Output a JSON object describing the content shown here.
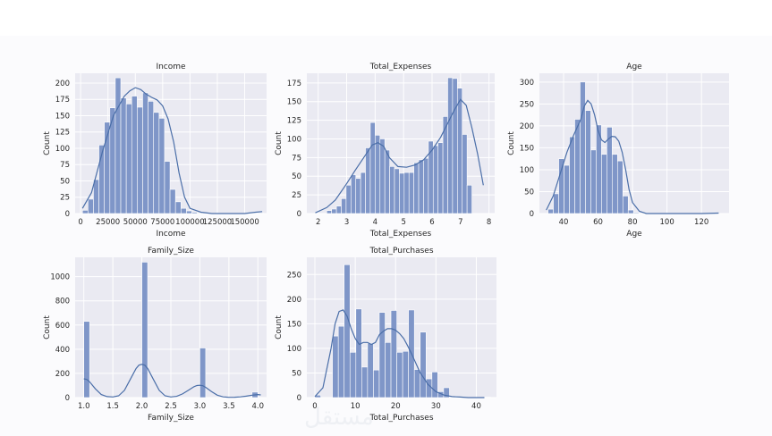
{
  "watermark": "مستقل",
  "colors": {
    "bar_fill": "#7f96c8",
    "bar_stroke": "#ffffff",
    "kde": "#4a6ea8",
    "panel_bg": "#eaeaf2",
    "grid": "#ffffff",
    "text": "#262626"
  },
  "chart_data": [
    {
      "type": "histogram",
      "title": "Income",
      "xlabel": "Income",
      "ylabel": "Count",
      "xlim": [
        -5000,
        170000
      ],
      "ylim": [
        0,
        215
      ],
      "xticks": [
        0,
        25000,
        50000,
        75000,
        100000,
        125000,
        150000
      ],
      "xticklabels": [
        "0",
        "25000",
        "50000",
        "75000",
        "100000",
        "125000",
        "150000"
      ],
      "yticks": [
        0,
        25,
        50,
        75,
        100,
        125,
        150,
        175,
        200
      ],
      "bin_start": 1730,
      "bin_width": 5000,
      "counts": [
        5,
        22,
        52,
        105,
        140,
        162,
        208,
        177,
        168,
        180,
        163,
        185,
        172,
        155,
        146,
        80,
        37,
        18,
        8,
        4,
        2,
        1,
        1,
        0,
        0,
        0,
        0,
        0,
        0,
        0,
        0,
        0,
        1
      ],
      "kde_x": [
        1730,
        10000,
        20000,
        30000,
        40000,
        45000,
        50000,
        55000,
        60000,
        65000,
        70000,
        75000,
        80000,
        85000,
        90000,
        95000,
        100000,
        110000,
        120000,
        130000,
        140000,
        150000,
        160000,
        166000
      ],
      "kde_y": [
        8,
        32,
        95,
        150,
        180,
        188,
        193,
        190,
        183,
        178,
        174,
        165,
        145,
        110,
        62,
        25,
        8,
        2,
        0,
        0,
        0,
        0,
        2,
        3
      ]
    },
    {
      "type": "histogram",
      "title": "Total_Expenses",
      "xlabel": "Total_Expenses",
      "ylabel": "Count",
      "xlim": [
        1.6,
        8.2
      ],
      "ylim": [
        0,
        188
      ],
      "xticks": [
        2,
        3,
        4,
        5,
        6,
        7,
        8
      ],
      "xticklabels": [
        "2",
        "3",
        "4",
        "5",
        "6",
        "7",
        "8"
      ],
      "yticks": [
        0,
        25,
        50,
        75,
        100,
        125,
        150,
        175
      ],
      "bin_start": 2.3,
      "bin_width": 0.17,
      "counts": [
        4,
        6,
        10,
        20,
        38,
        52,
        47,
        55,
        88,
        122,
        105,
        100,
        85,
        63,
        60,
        54,
        55,
        55,
        68,
        72,
        74,
        97,
        91,
        95,
        130,
        182,
        181,
        168,
        106,
        38
      ],
      "kde_x": [
        1.9,
        2.3,
        2.6,
        3.0,
        3.3,
        3.6,
        3.9,
        4.1,
        4.3,
        4.5,
        4.8,
        5.1,
        5.4,
        5.7,
        6.0,
        6.3,
        6.6,
        6.8,
        7.0,
        7.2,
        7.4,
        7.6,
        7.8
      ],
      "kde_y": [
        1,
        8,
        18,
        40,
        58,
        75,
        92,
        95,
        90,
        75,
        63,
        62,
        65,
        72,
        85,
        102,
        125,
        140,
        153,
        145,
        115,
        80,
        38
      ]
    },
    {
      "type": "histogram",
      "title": "Age",
      "xlabel": "Age",
      "ylabel": "Count",
      "xlim": [
        26,
        136
      ],
      "ylim": [
        0,
        320
      ],
      "xticks": [
        40,
        60,
        80,
        100,
        120
      ],
      "xticklabels": [
        "40",
        "60",
        "80",
        "100",
        "120"
      ],
      "yticks": [
        0,
        50,
        100,
        150,
        200,
        250,
        300
      ],
      "bin_start": 31,
      "bin_width": 3.1,
      "counts": [
        10,
        45,
        125,
        110,
        175,
        215,
        300,
        235,
        145,
        202,
        135,
        197,
        135,
        120,
        40,
        8,
        2,
        0,
        0,
        0,
        0,
        0,
        0,
        0,
        0,
        0,
        0,
        0,
        0,
        0,
        1,
        1
      ],
      "kde_x": [
        30,
        34,
        38,
        42,
        46,
        50,
        52,
        54,
        56,
        58,
        60,
        62,
        64,
        66,
        68,
        70,
        72,
        74,
        76,
        78,
        80,
        84,
        88,
        100,
        120,
        130
      ],
      "kde_y": [
        8,
        40,
        90,
        140,
        180,
        215,
        245,
        258,
        250,
        225,
        190,
        168,
        162,
        170,
        176,
        175,
        165,
        140,
        100,
        55,
        25,
        5,
        0,
        0,
        0,
        1
      ]
    },
    {
      "type": "histogram",
      "title": "Family_Size",
      "xlabel": "Family_Size",
      "ylabel": "Count",
      "xlim": [
        0.85,
        4.15
      ],
      "ylim": [
        0,
        1160
      ],
      "xticks": [
        1.0,
        1.5,
        2.0,
        2.5,
        3.0,
        3.5,
        4.0
      ],
      "xticklabels": [
        "1.0",
        "1.5",
        "2.0",
        "2.5",
        "3.0",
        "3.5",
        "4.0"
      ],
      "yticks": [
        0,
        200,
        400,
        600,
        800,
        1000
      ],
      "bin_start": 1.0,
      "bin_width": 0.1,
      "counts": [
        630,
        0,
        0,
        0,
        0,
        0,
        0,
        0,
        0,
        0,
        1120,
        0,
        0,
        0,
        0,
        0,
        0,
        0,
        0,
        0,
        410,
        0,
        0,
        0,
        0,
        0,
        0,
        0,
        0,
        45
      ],
      "kde_x": [
        1.0,
        1.05,
        1.1,
        1.2,
        1.3,
        1.4,
        1.5,
        1.6,
        1.7,
        1.8,
        1.9,
        1.95,
        2.0,
        2.05,
        2.1,
        2.2,
        2.3,
        2.4,
        2.5,
        2.6,
        2.7,
        2.8,
        2.9,
        2.95,
        3.0,
        3.05,
        3.1,
        3.2,
        3.3,
        3.4,
        3.5,
        3.6,
        3.7,
        3.8,
        3.9,
        4.0,
        4.05
      ],
      "kde_y": [
        155,
        150,
        130,
        72,
        25,
        8,
        5,
        15,
        60,
        150,
        240,
        268,
        275,
        268,
        240,
        150,
        60,
        15,
        5,
        10,
        30,
        60,
        90,
        100,
        102,
        98,
        85,
        50,
        20,
        6,
        2,
        3,
        6,
        12,
        20,
        25,
        22
      ]
    },
    {
      "type": "histogram",
      "title": "Total_Purchases",
      "xlabel": "Total_Purchases",
      "ylabel": "Count",
      "xlim": [
        -2,
        45
      ],
      "ylim": [
        0,
        285
      ],
      "xticks": [
        0,
        10,
        20,
        30,
        40
      ],
      "xticklabels": [
        "0",
        "10",
        "20",
        "30",
        "40"
      ],
      "yticks": [
        0,
        50,
        100,
        150,
        200,
        250
      ],
      "bin_start": 0,
      "bin_width": 1.45,
      "counts": [
        5,
        0,
        0,
        125,
        145,
        270,
        92,
        180,
        62,
        110,
        56,
        173,
        112,
        177,
        92,
        94,
        178,
        57,
        133,
        38,
        52,
        12,
        20,
        0,
        0,
        0,
        0,
        0,
        0,
        1
      ],
      "kde_x": [
        0,
        2,
        4,
        5,
        6,
        7,
        8,
        9,
        10,
        11,
        12,
        13,
        14,
        15,
        16,
        17,
        18,
        19,
        20,
        21,
        22,
        23,
        24,
        25,
        26,
        28,
        30,
        32,
        34,
        36,
        38,
        40,
        42
      ],
      "kde_y": [
        2,
        20,
        100,
        150,
        175,
        178,
        165,
        140,
        120,
        108,
        112,
        112,
        108,
        112,
        128,
        135,
        140,
        140,
        137,
        130,
        120,
        105,
        88,
        70,
        52,
        27,
        12,
        5,
        2,
        1,
        0,
        0,
        0
      ]
    }
  ]
}
